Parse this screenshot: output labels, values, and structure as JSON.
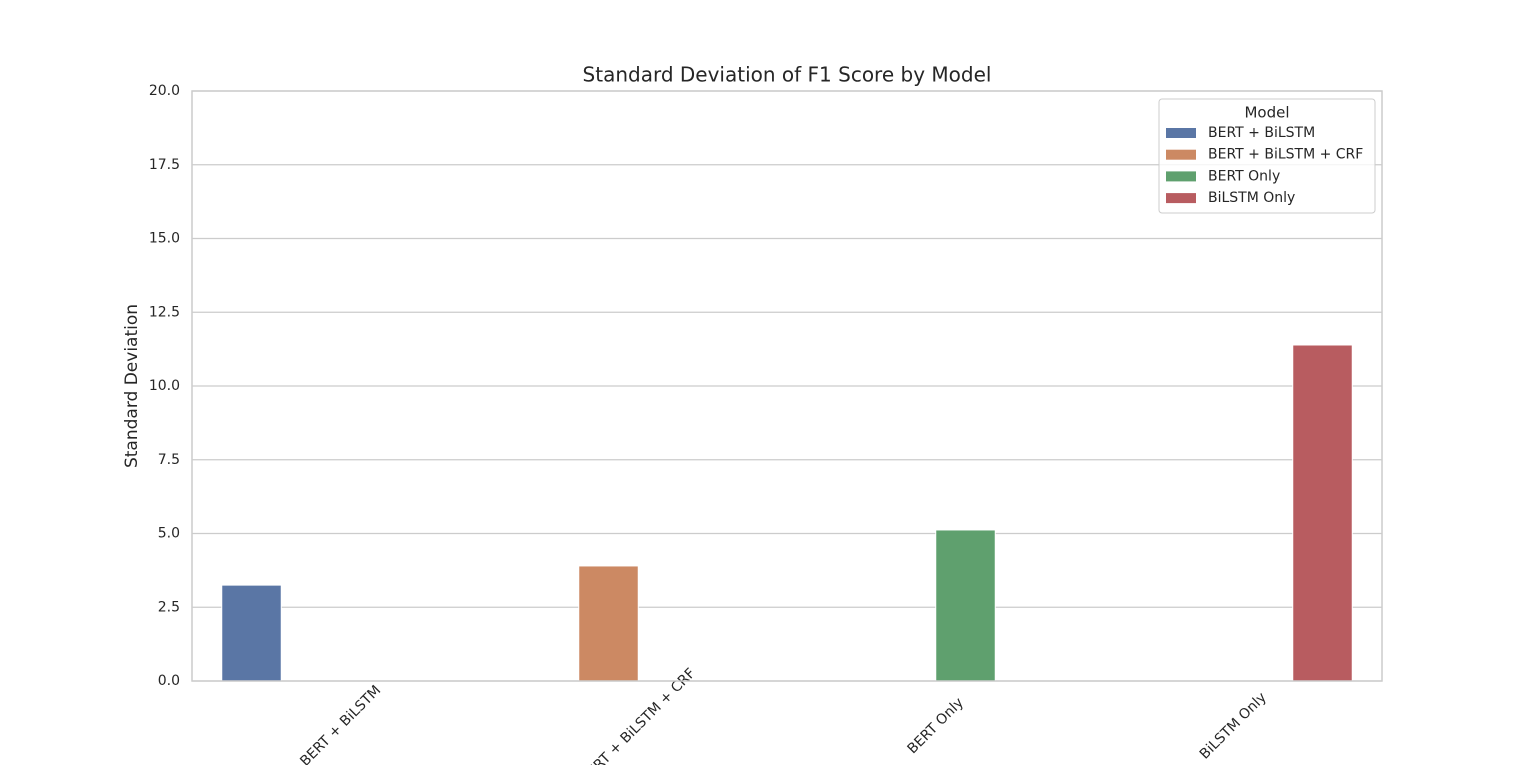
{
  "chart_data": {
    "type": "bar",
    "title": "Standard Deviation of F1 Score by Model",
    "ylabel": "Standard Deviation",
    "categories": [
      "BERT + BiLSTM",
      "BERT + BiLSTM + CRF",
      "BERT Only",
      "BiLSTM Only"
    ],
    "series": [
      {
        "name": "BERT + BiLSTM",
        "color": "#5a76a5",
        "values": [
          3.25,
          null,
          null,
          null
        ]
      },
      {
        "name": "BERT + BiLSTM + CRF",
        "color": "#cc8963",
        "values": [
          null,
          3.9,
          null,
          null
        ]
      },
      {
        "name": "BERT Only",
        "color": "#5fa06e",
        "values": [
          null,
          null,
          5.12,
          null
        ]
      },
      {
        "name": "BiLSTM Only",
        "color": "#b85c60",
        "values": [
          null,
          null,
          null,
          11.39
        ]
      }
    ],
    "legend_title": "Model",
    "legend": "upper right",
    "ylim": [
      0,
      20
    ],
    "yticks": [
      {
        "value": 0,
        "label": "0.0"
      },
      2.5,
      {
        "value": 5,
        "label": "5.0"
      },
      7.5,
      {
        "value": 10,
        "label": "10.0"
      },
      12.5,
      {
        "value": 15,
        "label": "15.0"
      },
      17.5,
      {
        "value": 20,
        "label": "20.0"
      }
    ],
    "grid": true
  }
}
